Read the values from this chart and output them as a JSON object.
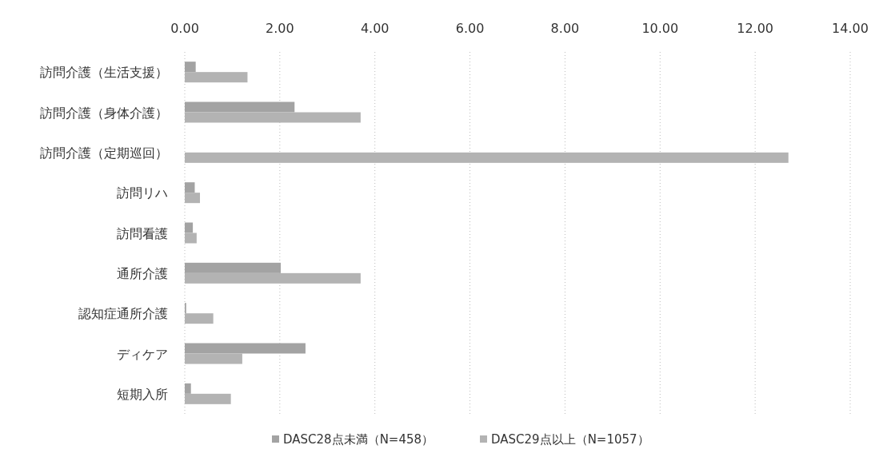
{
  "chart_data": {
    "type": "bar",
    "orientation": "horizontal",
    "categories": [
      "訪問介護（生活支援）",
      "訪問介護（身体介護）",
      "訪問介護（定期巡回）",
      "訪問リハ",
      "訪問看護",
      "通所介護",
      "認知症通所介護",
      "ディケア",
      "短期入所"
    ],
    "series": [
      {
        "name": "DASC28点未満（N=458）",
        "color": "#a3a3a3",
        "values": [
          0.23,
          2.31,
          0,
          0.21,
          0.17,
          2.02,
          0.03,
          2.54,
          0.13
        ]
      },
      {
        "name": "DASC29点以上（N=1057）",
        "color": "#b3b3b3",
        "values": [
          1.32,
          3.7,
          12.7,
          0.32,
          0.25,
          3.7,
          0.6,
          1.21,
          0.97
        ]
      }
    ],
    "xlim": [
      0,
      14
    ],
    "xticks": [
      {
        "value": 0,
        "label": "0.00"
      },
      {
        "value": 2,
        "label": "2.00"
      },
      {
        "value": 4,
        "label": "4.00"
      },
      {
        "value": 6,
        "label": "6.00"
      },
      {
        "value": 8,
        "label": "8.00"
      },
      {
        "value": 10,
        "label": "10.00"
      },
      {
        "value": 12,
        "label": "12.00"
      },
      {
        "value": 14,
        "label": "14.00"
      }
    ],
    "grid": "x",
    "legend": "bottom"
  }
}
